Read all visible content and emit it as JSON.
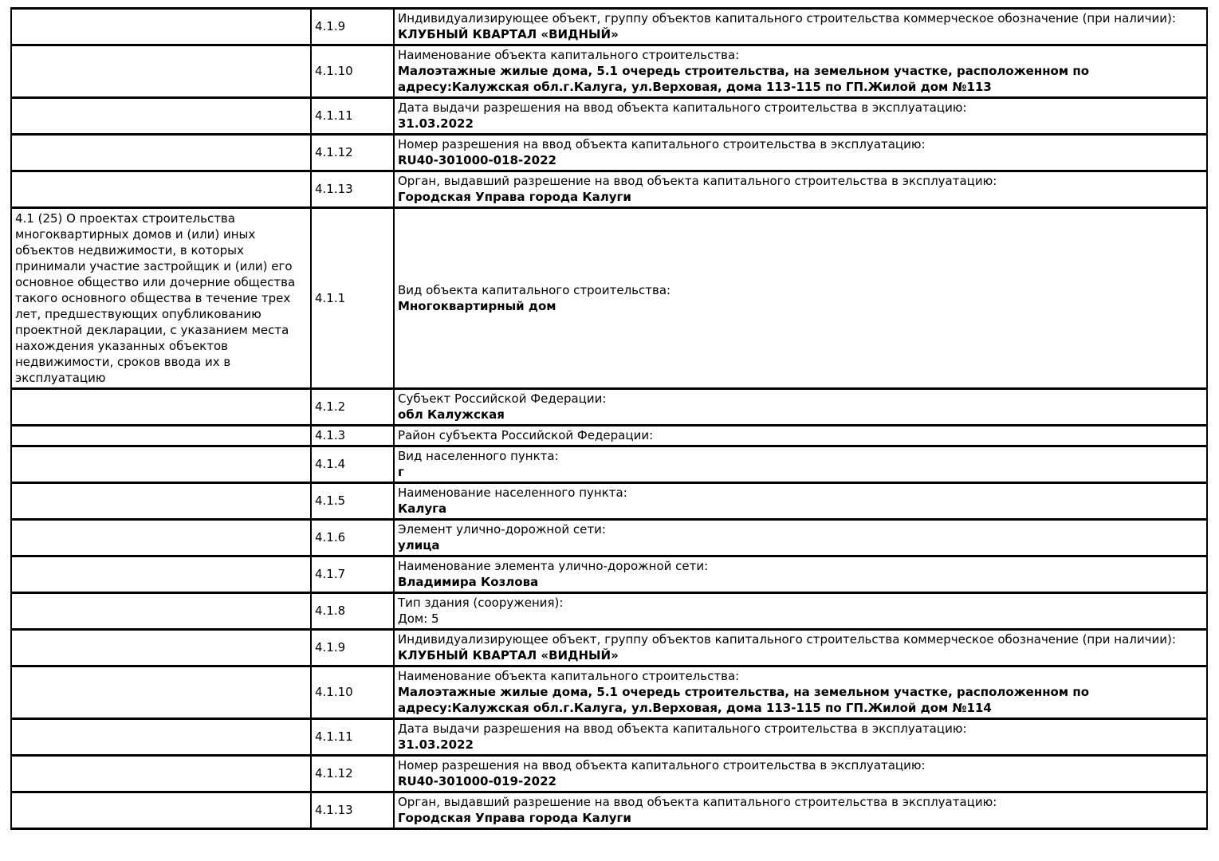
{
  "document": {
    "type_label": "Таблица проектной декларации",
    "colors": {
      "background": "#ffffff",
      "text": "#000000",
      "border": "#000000"
    }
  },
  "table": {
    "columns": [
      "note",
      "code",
      "content"
    ],
    "rows": [
      {
        "note": "",
        "code": "4.1.9",
        "label": "Индивидуализирующее объект, группу объектов капитального строительства коммерческое обозначение (при наличии):",
        "value": "КЛУБНЫЙ КВАРТАЛ «ВИДНЫЙ»",
        "value_bold": true
      },
      {
        "note": "",
        "code": "4.1.10",
        "label": "Наименование объекта капитального строительства:",
        "value": "Малоэтажные жилые дома, 5.1 очередь строительства, на земельном участке, расположенном по адресу:Калужская обл.г.Калуга, ул.Верховая, дома 113-115 по ГП.Жилой дом №113",
        "value_bold": true
      },
      {
        "note": "",
        "code": "4.1.11",
        "label": "Дата выдачи разрешения на ввод объекта капитального строительства в эксплуатацию:",
        "value": "31.03.2022",
        "value_bold": true
      },
      {
        "note": "",
        "code": "4.1.12",
        "label": "Номер разрешения на ввод объекта капитального строительства в эксплуатацию:",
        "value": "RU40-301000-018-2022",
        "value_bold": true
      },
      {
        "note": "",
        "code": "4.1.13",
        "label": "Орган, выдавший разрешение на ввод объекта капитального строительства в эксплуатацию:",
        "value": "Городская Управа города Калуги",
        "value_bold": true
      },
      {
        "note": "4.1 (25) О проектах строительства многоквартирных домов и (или) иных объектов недвижимости, в которых принимали участие застройщик и (или) его основное общество или дочерние общества такого основного общества в течение трех лет, предшествующих опубликованию проектной декларации, с указанием места нахождения указанных объектов недвижимости, сроков ввода их в эксплуатацию",
        "code": "4.1.1",
        "label": "Вид объекта капитального строительства:",
        "value": "Многоквартирный дом",
        "value_bold": true
      },
      {
        "note": "",
        "code": "4.1.2",
        "label": "Субъект Российской Федерации:",
        "value": "обл Калужская",
        "value_bold": true
      },
      {
        "note": "",
        "code": "4.1.3",
        "label": "Район субъекта Российской Федерации:",
        "value": "",
        "value_bold": true
      },
      {
        "note": "",
        "code": "4.1.4",
        "label": "Вид населенного пункта:",
        "value": "г",
        "value_bold": true
      },
      {
        "note": "",
        "code": "4.1.5",
        "label": "Наименование населенного пункта:",
        "value": "Калуга",
        "value_bold": true
      },
      {
        "note": "",
        "code": "4.1.6",
        "label": "Элемент улично-дорожной сети:",
        "value": "улица",
        "value_bold": true
      },
      {
        "note": "",
        "code": "4.1.7",
        "label": "Наименование элемента улично-дорожной сети:",
        "value": "Владимира Козлова",
        "value_bold": true
      },
      {
        "note": "",
        "code": "4.1.8",
        "label": "Тип здания (сооружения):",
        "value": "Дом: 5",
        "value_bold": false
      },
      {
        "note": "",
        "code": "4.1.9",
        "label": "Индивидуализирующее объект, группу объектов капитального строительства коммерческое обозначение (при наличии):",
        "value": "КЛУБНЫЙ КВАРТАЛ «ВИДНЫЙ»",
        "value_bold": true
      },
      {
        "note": "",
        "code": "4.1.10",
        "label": "Наименование объекта капитального строительства:",
        "value": "Малоэтажные жилые дома, 5.1 очередь строительства, на земельном участке, расположенном по адресу:Калужская обл.г.Калуга, ул.Верховая, дома 113-115 по ГП.Жилой дом №114",
        "value_bold": true
      },
      {
        "note": "",
        "code": "4.1.11",
        "label": "Дата выдачи разрешения на ввод объекта капитального строительства в эксплуатацию:",
        "value": "31.03.2022",
        "value_bold": true
      },
      {
        "note": "",
        "code": "4.1.12",
        "label": "Номер разрешения на ввод объекта капитального строительства в эксплуатацию:",
        "value": "RU40-301000-019-2022",
        "value_bold": true
      },
      {
        "note": "",
        "code": "4.1.13",
        "label": "Орган, выдавший разрешение на ввод объекта капитального строительства в эксплуатацию:",
        "value": "Городская Управа города Калуги",
        "value_bold": true
      }
    ]
  }
}
